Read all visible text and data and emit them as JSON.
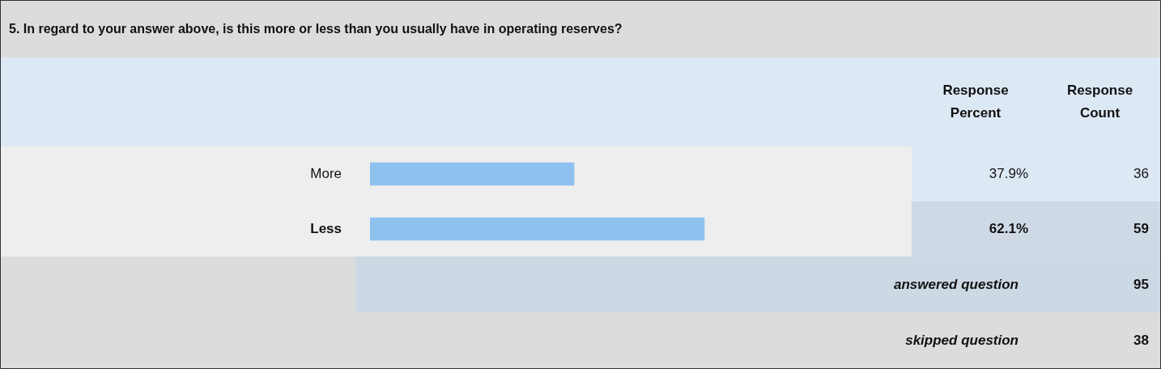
{
  "chart_data": {
    "type": "bar",
    "orientation": "horizontal",
    "title": "5. In regard to your answer above, is this more or less than you usually have in operating reserves?",
    "categories": [
      "More",
      "Less"
    ],
    "values": [
      37.9,
      62.1
    ],
    "value_labels": [
      "37.9%",
      "62.1%"
    ],
    "color": "#8fc1ef",
    "annotations": [
      "Response Percent",
      "Response Count",
      "36",
      "59",
      "answered question",
      "95",
      "skipped question",
      "38"
    ]
  }
}
